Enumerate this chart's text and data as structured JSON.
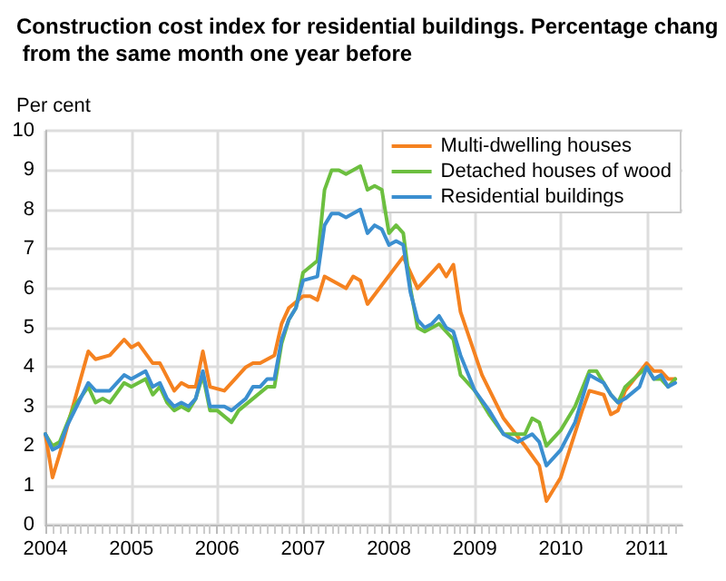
{
  "chart_data": {
    "type": "line",
    "title": "Construction cost index for residential buildings. Percentage chang from the same month one year before",
    "ylabel": "Per cent",
    "xlim": [
      "2004-01",
      "2011-06"
    ],
    "xticks": [
      "2004",
      "2005",
      "2006",
      "2007",
      "2008",
      "2009",
      "2010",
      "2011"
    ],
    "ylim": [
      0,
      10
    ],
    "yticks": [
      0,
      1,
      2,
      3,
      4,
      5,
      6,
      7,
      8,
      9,
      10
    ],
    "grid": true,
    "legend": "top right",
    "marker": "none",
    "line_style": "solid",
    "series": [
      {
        "name": "Multi-dwelling houses",
        "color": "#f58220",
        "x": [
          "2004-01",
          "2004-02",
          "2004-03",
          "2004-07",
          "2004-08",
          "2004-10",
          "2004-12",
          "2005-01",
          "2005-02",
          "2005-04",
          "2005-05",
          "2005-07",
          "2005-08",
          "2005-09",
          "2005-10",
          "2005-11",
          "2005-12",
          "2006-02",
          "2006-05",
          "2006-06",
          "2006-07",
          "2006-09",
          "2006-10",
          "2006-11",
          "2007-01",
          "2007-02",
          "2007-03",
          "2007-04",
          "2007-07",
          "2007-08",
          "2007-09",
          "2007-10",
          "2008-03",
          "2008-05",
          "2008-08",
          "2008-09",
          "2008-10",
          "2008-11",
          "2009-02",
          "2009-05",
          "2009-08",
          "2009-10",
          "2009-11",
          "2010-01",
          "2010-04",
          "2010-05",
          "2010-07",
          "2010-08",
          "2010-09",
          "2010-10",
          "2011-01",
          "2011-02",
          "2011-03",
          "2011-04",
          "2011-05"
        ],
        "values": [
          2.3,
          1.2,
          1.8,
          4.4,
          4.2,
          4.3,
          4.7,
          4.5,
          4.6,
          4.1,
          4.1,
          3.4,
          3.6,
          3.5,
          3.5,
          4.4,
          3.5,
          3.4,
          4.0,
          4.1,
          4.1,
          4.3,
          5.1,
          5.5,
          5.8,
          5.8,
          5.7,
          6.3,
          6.0,
          6.3,
          6.2,
          5.6,
          6.8,
          6.0,
          6.6,
          6.3,
          6.6,
          5.4,
          3.8,
          2.7,
          2.0,
          1.5,
          0.6,
          1.2,
          2.9,
          3.4,
          3.3,
          2.8,
          2.9,
          3.4,
          4.1,
          3.9,
          3.9,
          3.7,
          3.7
        ]
      },
      {
        "name": "Detached houses of wood",
        "color": "#6cbf3f",
        "x": [
          "2004-01",
          "2004-02",
          "2004-03",
          "2004-05",
          "2004-07",
          "2004-08",
          "2004-09",
          "2004-10",
          "2004-12",
          "2005-01",
          "2005-03",
          "2005-04",
          "2005-05",
          "2005-06",
          "2005-07",
          "2005-08",
          "2005-09",
          "2005-10",
          "2005-11",
          "2005-12",
          "2006-01",
          "2006-03",
          "2006-04",
          "2006-06",
          "2006-08",
          "2006-09",
          "2006-10",
          "2006-11",
          "2006-12",
          "2007-01",
          "2007-03",
          "2007-04",
          "2007-05",
          "2007-06",
          "2007-07",
          "2007-09",
          "2007-10",
          "2007-11",
          "2007-12",
          "2008-01",
          "2008-02",
          "2008-03",
          "2008-04",
          "2008-05",
          "2008-06",
          "2008-08",
          "2008-10",
          "2008-11",
          "2009-01",
          "2009-03",
          "2009-05",
          "2009-08",
          "2009-09",
          "2009-10",
          "2009-11",
          "2010-01",
          "2010-03",
          "2010-05",
          "2010-06",
          "2010-08",
          "2010-09",
          "2010-10",
          "2011-01",
          "2011-02",
          "2011-03",
          "2011-04",
          "2011-05"
        ],
        "values": [
          2.3,
          2.0,
          2.1,
          3.0,
          3.5,
          3.1,
          3.2,
          3.1,
          3.6,
          3.5,
          3.7,
          3.3,
          3.5,
          3.1,
          2.9,
          3.0,
          2.9,
          3.2,
          3.8,
          2.9,
          2.9,
          2.6,
          2.9,
          3.2,
          3.5,
          3.5,
          4.6,
          5.2,
          5.5,
          6.4,
          6.7,
          8.5,
          9.0,
          9.0,
          8.9,
          9.1,
          8.5,
          8.6,
          8.5,
          7.4,
          7.6,
          7.4,
          6.0,
          5.0,
          4.9,
          5.1,
          4.7,
          3.8,
          3.4,
          2.8,
          2.3,
          2.3,
          2.7,
          2.6,
          2.0,
          2.4,
          3.0,
          3.9,
          3.9,
          3.3,
          3.1,
          3.5,
          4.0,
          3.7,
          3.7,
          3.5,
          3.7
        ]
      },
      {
        "name": "Residential buildings",
        "color": "#3b8fd0",
        "x": [
          "2004-01",
          "2004-02",
          "2004-03",
          "2004-04",
          "2004-07",
          "2004-08",
          "2004-10",
          "2004-12",
          "2005-01",
          "2005-03",
          "2005-04",
          "2005-05",
          "2005-06",
          "2005-07",
          "2005-08",
          "2005-09",
          "2005-10",
          "2005-11",
          "2005-12",
          "2006-02",
          "2006-03",
          "2006-05",
          "2006-06",
          "2006-07",
          "2006-08",
          "2006-09",
          "2006-10",
          "2006-11",
          "2006-12",
          "2007-01",
          "2007-03",
          "2007-04",
          "2007-05",
          "2007-06",
          "2007-07",
          "2007-09",
          "2007-10",
          "2007-11",
          "2007-12",
          "2008-01",
          "2008-02",
          "2008-03",
          "2008-04",
          "2008-05",
          "2008-06",
          "2008-07",
          "2008-08",
          "2008-09",
          "2008-10",
          "2008-11",
          "2009-01",
          "2009-03",
          "2009-05",
          "2009-07",
          "2009-08",
          "2009-09",
          "2009-10",
          "2009-11",
          "2010-01",
          "2010-03",
          "2010-05",
          "2010-06",
          "2010-07",
          "2010-08",
          "2010-09",
          "2010-10",
          "2010-12",
          "2011-01",
          "2011-02",
          "2011-03",
          "2011-04",
          "2011-05"
        ],
        "values": [
          2.3,
          1.9,
          2.0,
          2.5,
          3.6,
          3.4,
          3.4,
          3.8,
          3.7,
          3.9,
          3.5,
          3.6,
          3.2,
          3.0,
          3.1,
          3.0,
          3.2,
          3.9,
          3.0,
          3.0,
          2.9,
          3.2,
          3.5,
          3.5,
          3.7,
          3.7,
          4.7,
          5.2,
          5.5,
          6.2,
          6.3,
          7.6,
          7.9,
          7.9,
          7.8,
          8.0,
          7.4,
          7.6,
          7.5,
          7.1,
          7.2,
          7.1,
          5.9,
          5.2,
          5.0,
          5.1,
          5.3,
          5.0,
          4.9,
          4.3,
          3.4,
          2.9,
          2.3,
          2.1,
          2.2,
          2.3,
          2.1,
          1.5,
          1.9,
          2.6,
          3.8,
          3.7,
          3.6,
          3.3,
          3.1,
          3.2,
          3.5,
          4.0,
          3.7,
          3.8,
          3.5,
          3.6
        ]
      }
    ]
  }
}
